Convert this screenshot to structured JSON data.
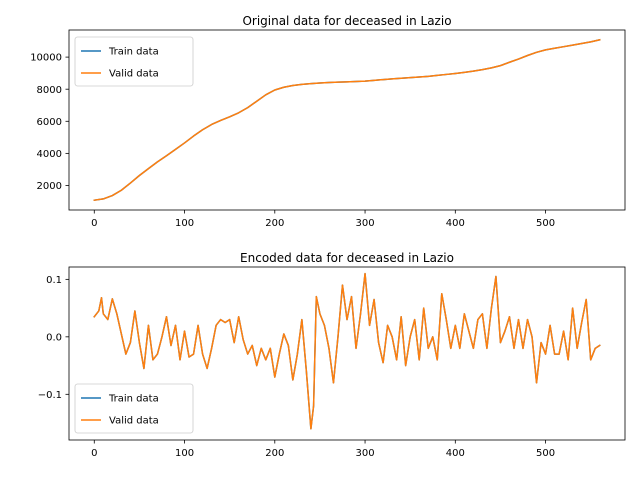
{
  "chart_data": [
    {
      "type": "line",
      "title": "Original data for deceased in Lazio",
      "xlabel": "",
      "ylabel": "",
      "xlim": [
        -28,
        588
      ],
      "ylim": [
        470,
        11690
      ],
      "xticks": [
        0,
        100,
        200,
        300,
        400,
        500
      ],
      "xtick_labels": [
        "0",
        "100",
        "200",
        "300",
        "400",
        "500"
      ],
      "yticks": [
        2000,
        4000,
        6000,
        8000,
        10000
      ],
      "ytick_labels": [
        "2000",
        "4000",
        "6000",
        "8000",
        "10000"
      ],
      "legend": "upper-left",
      "grid": false,
      "series": [
        {
          "name": "Train data",
          "color": "#1f77b4",
          "x": [
            0,
            10,
            20,
            30,
            40,
            50,
            60,
            70,
            80,
            90,
            100,
            110,
            120,
            130,
            140,
            150,
            160,
            170,
            180,
            190,
            200,
            210,
            220,
            230,
            240,
            250,
            260,
            270,
            280,
            290,
            300,
            310,
            320,
            330,
            340,
            350,
            360,
            370,
            380,
            390,
            400,
            410,
            420,
            430,
            440,
            450,
            460,
            470,
            480,
            490,
            500,
            510,
            520,
            530,
            540,
            550,
            560
          ],
          "y": [
            1080,
            1160,
            1370,
            1700,
            2150,
            2620,
            3050,
            3470,
            3850,
            4250,
            4650,
            5080,
            5470,
            5800,
            6050,
            6280,
            6530,
            6850,
            7250,
            7650,
            7950,
            8120,
            8230,
            8300,
            8350,
            8390,
            8420,
            8440,
            8460,
            8480,
            8500,
            8550,
            8600,
            8640,
            8680,
            8720,
            8760,
            8800,
            8860,
            8920,
            8980,
            9050,
            9130,
            9220,
            9330,
            9470,
            9680,
            9880,
            10100,
            10300,
            10450,
            10550,
            10650,
            10750,
            10850,
            10950,
            11080
          ]
        },
        {
          "name": "Valid data",
          "color": "#ff7f0e",
          "x": [
            0,
            10,
            20,
            30,
            40,
            50,
            60,
            70,
            80,
            90,
            100,
            110,
            120,
            130,
            140,
            150,
            160,
            170,
            180,
            190,
            200,
            210,
            220,
            230,
            240,
            250,
            260,
            270,
            280,
            290,
            300,
            310,
            320,
            330,
            340,
            350,
            360,
            370,
            380,
            390,
            400,
            410,
            420,
            430,
            440,
            450,
            460,
            470,
            480,
            490,
            500,
            510,
            520,
            530,
            540,
            550,
            560
          ],
          "y": [
            1080,
            1160,
            1370,
            1700,
            2150,
            2620,
            3050,
            3470,
            3850,
            4250,
            4650,
            5080,
            5470,
            5800,
            6050,
            6280,
            6530,
            6850,
            7250,
            7650,
            7950,
            8120,
            8230,
            8300,
            8350,
            8390,
            8420,
            8440,
            8460,
            8480,
            8500,
            8550,
            8600,
            8640,
            8680,
            8720,
            8760,
            8800,
            8860,
            8920,
            8980,
            9050,
            9130,
            9220,
            9330,
            9470,
            9680,
            9880,
            10100,
            10300,
            10450,
            10550,
            10650,
            10750,
            10850,
            10950,
            11080
          ]
        }
      ]
    },
    {
      "type": "line",
      "title": "Encoded data for deceased in Lazio",
      "xlabel": "",
      "ylabel": "",
      "xlim": [
        -28,
        588
      ],
      "ylim": [
        -0.1795,
        0.1215
      ],
      "xticks": [
        0,
        100,
        200,
        300,
        400,
        500
      ],
      "xtick_labels": [
        "0",
        "100",
        "200",
        "300",
        "400",
        "500"
      ],
      "yticks": [
        0.1,
        0.0,
        -0.1
      ],
      "ytick_labels": [
        "0.1",
        "0.0",
        "−0.1"
      ],
      "legend": "lower-left",
      "grid": false,
      "series": [
        {
          "name": "Train data",
          "color": "#1f77b4",
          "x": [
            0,
            5,
            8,
            10,
            15,
            20,
            25,
            30,
            35,
            40,
            45,
            50,
            55,
            60,
            65,
            70,
            75,
            80,
            85,
            90,
            95,
            100,
            105,
            110,
            115,
            120,
            125,
            130,
            135,
            140,
            145,
            150,
            155,
            160,
            165,
            170,
            175,
            180,
            185,
            190,
            195,
            200,
            205,
            210,
            215,
            220,
            225,
            230,
            235,
            240,
            243,
            246,
            250,
            255,
            260,
            265,
            270,
            275,
            280,
            285,
            290,
            295,
            300,
            305,
            310,
            315,
            320,
            325,
            330,
            335,
            340,
            345,
            350,
            355,
            360,
            365,
            370,
            375,
            380,
            385,
            390,
            395,
            400,
            405,
            410,
            415,
            420,
            425,
            430,
            435,
            440,
            445,
            450,
            455,
            460,
            465,
            470,
            475,
            480,
            485,
            490,
            495,
            500,
            505,
            510,
            515,
            520,
            525,
            530,
            535,
            540,
            545,
            550,
            555,
            560
          ],
          "y": [
            0.035,
            0.045,
            0.068,
            0.04,
            0.03,
            0.066,
            0.04,
            0.005,
            -0.03,
            -0.01,
            0.045,
            -0.01,
            -0.055,
            0.02,
            -0.04,
            -0.03,
            0.0,
            0.035,
            -0.015,
            0.02,
            -0.04,
            0.01,
            -0.035,
            -0.03,
            0.02,
            -0.03,
            -0.055,
            -0.02,
            0.02,
            0.03,
            0.025,
            0.03,
            -0.01,
            0.035,
            -0.005,
            -0.03,
            -0.015,
            -0.05,
            -0.02,
            -0.04,
            -0.02,
            -0.07,
            -0.03,
            0.005,
            -0.015,
            -0.075,
            -0.03,
            0.03,
            -0.06,
            -0.16,
            -0.12,
            0.07,
            0.04,
            0.02,
            -0.02,
            -0.08,
            0.0,
            0.09,
            0.03,
            0.07,
            -0.02,
            0.04,
            0.11,
            0.02,
            0.065,
            -0.01,
            -0.045,
            0.02,
            0.0,
            -0.04,
            0.035,
            -0.05,
            0.0,
            0.03,
            -0.04,
            0.05,
            -0.02,
            0.0,
            -0.04,
            0.075,
            0.03,
            -0.02,
            0.02,
            -0.02,
            0.04,
            0.01,
            -0.02,
            0.03,
            0.04,
            -0.02,
            0.05,
            0.105,
            -0.01,
            0.01,
            0.035,
            -0.02,
            0.03,
            -0.02,
            0.03,
            0.0,
            -0.08,
            -0.01,
            -0.03,
            0.02,
            -0.03,
            -0.03,
            0.01,
            -0.04,
            0.05,
            -0.02,
            0.025,
            0.065,
            -0.04,
            -0.02,
            -0.015
          ]
        },
        {
          "name": "Valid data",
          "color": "#ff7f0e",
          "x": [
            0,
            5,
            8,
            10,
            15,
            20,
            25,
            30,
            35,
            40,
            45,
            50,
            55,
            60,
            65,
            70,
            75,
            80,
            85,
            90,
            95,
            100,
            105,
            110,
            115,
            120,
            125,
            130,
            135,
            140,
            145,
            150,
            155,
            160,
            165,
            170,
            175,
            180,
            185,
            190,
            195,
            200,
            205,
            210,
            215,
            220,
            225,
            230,
            235,
            240,
            243,
            246,
            250,
            255,
            260,
            265,
            270,
            275,
            280,
            285,
            290,
            295,
            300,
            305,
            310,
            315,
            320,
            325,
            330,
            335,
            340,
            345,
            350,
            355,
            360,
            365,
            370,
            375,
            380,
            385,
            390,
            395,
            400,
            405,
            410,
            415,
            420,
            425,
            430,
            435,
            440,
            445,
            450,
            455,
            460,
            465,
            470,
            475,
            480,
            485,
            490,
            495,
            500,
            505,
            510,
            515,
            520,
            525,
            530,
            535,
            540,
            545,
            550,
            555,
            560
          ],
          "y": [
            0.035,
            0.045,
            0.068,
            0.04,
            0.03,
            0.066,
            0.04,
            0.005,
            -0.03,
            -0.01,
            0.045,
            -0.01,
            -0.055,
            0.02,
            -0.04,
            -0.03,
            0.0,
            0.035,
            -0.015,
            0.02,
            -0.04,
            0.01,
            -0.035,
            -0.03,
            0.02,
            -0.03,
            -0.055,
            -0.02,
            0.02,
            0.03,
            0.025,
            0.03,
            -0.01,
            0.035,
            -0.005,
            -0.03,
            -0.015,
            -0.05,
            -0.02,
            -0.04,
            -0.02,
            -0.07,
            -0.03,
            0.005,
            -0.015,
            -0.075,
            -0.03,
            0.03,
            -0.06,
            -0.16,
            -0.12,
            0.07,
            0.04,
            0.02,
            -0.02,
            -0.08,
            0.0,
            0.09,
            0.03,
            0.07,
            -0.02,
            0.04,
            0.11,
            0.02,
            0.065,
            -0.01,
            -0.045,
            0.02,
            0.0,
            -0.04,
            0.035,
            -0.05,
            0.0,
            0.03,
            -0.04,
            0.05,
            -0.02,
            0.0,
            -0.04,
            0.075,
            0.03,
            -0.02,
            0.02,
            -0.02,
            0.04,
            0.01,
            -0.02,
            0.03,
            0.04,
            -0.02,
            0.05,
            0.105,
            -0.01,
            0.01,
            0.035,
            -0.02,
            0.03,
            -0.02,
            0.03,
            0.0,
            -0.08,
            -0.01,
            -0.03,
            0.02,
            -0.03,
            -0.03,
            0.01,
            -0.04,
            0.05,
            -0.02,
            0.025,
            0.065,
            -0.04,
            -0.02,
            -0.015
          ]
        }
      ]
    }
  ]
}
